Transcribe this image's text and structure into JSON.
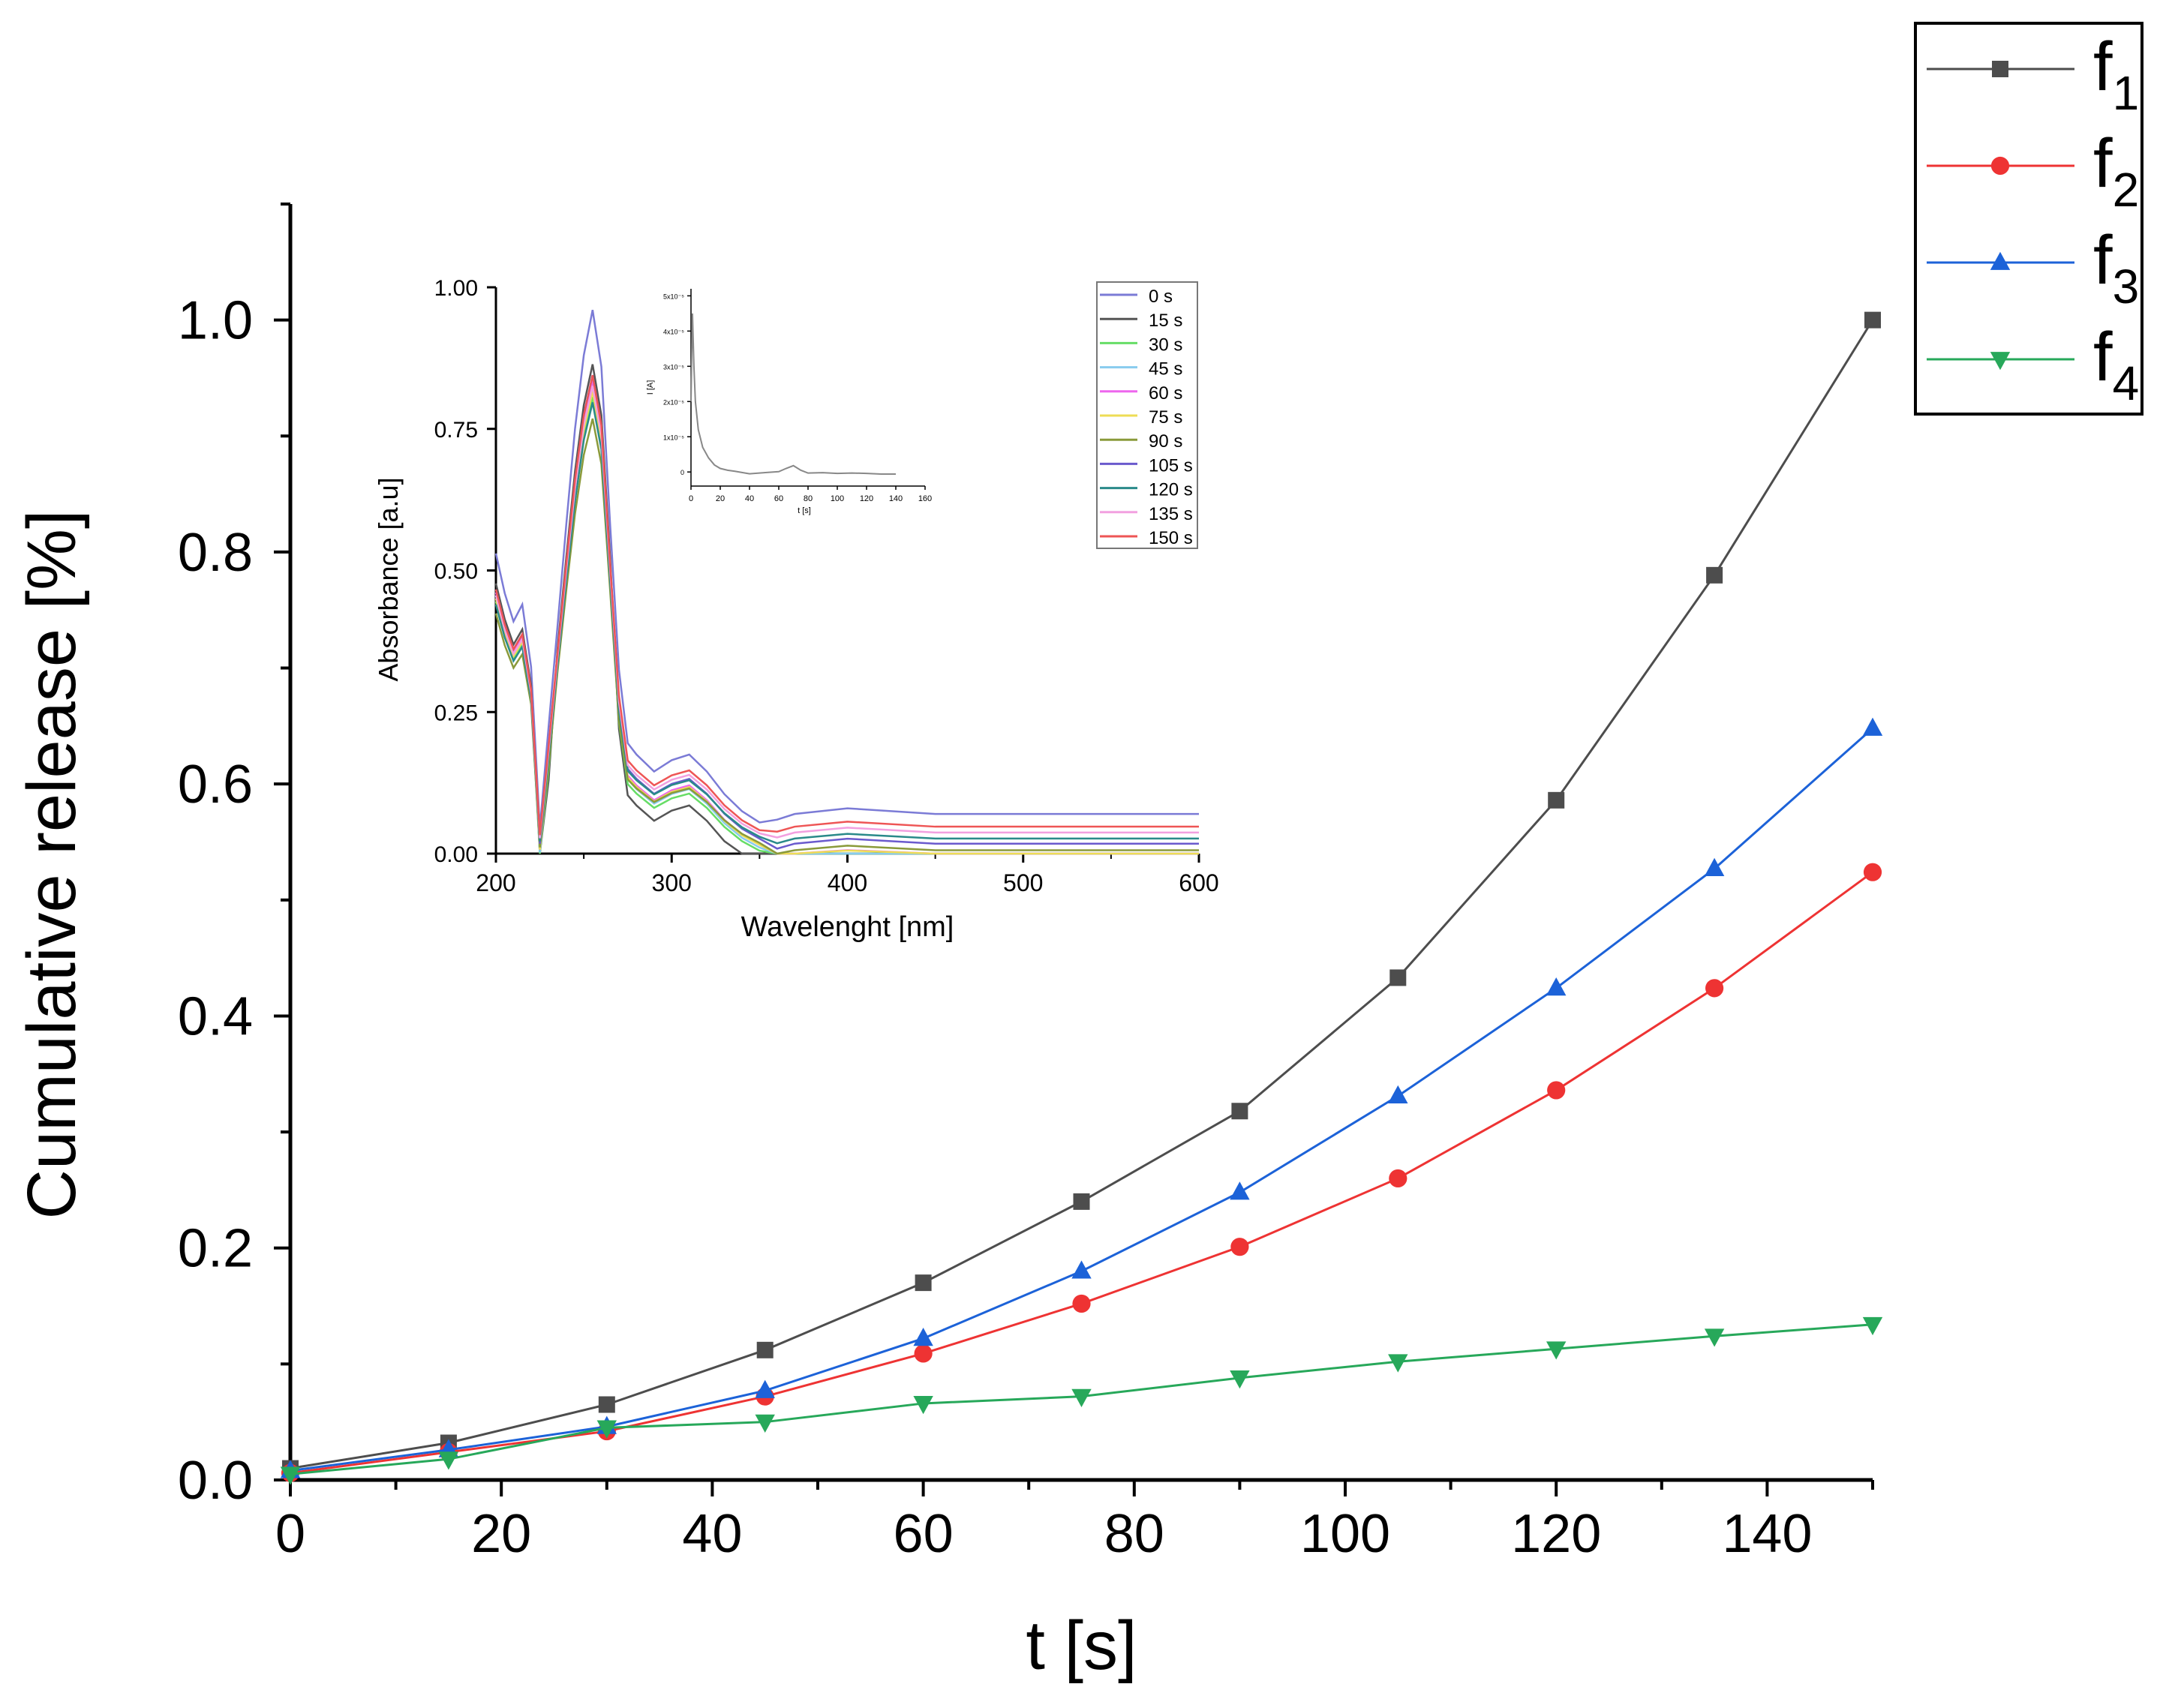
{
  "chart_data": [
    {
      "type": "line",
      "role": "main",
      "xlabel": "t [s]",
      "ylabel": "Cumulative release [%]",
      "xlim": [
        0,
        150
      ],
      "ylim": [
        0,
        1.1
      ],
      "xticks": [
        0,
        20,
        40,
        60,
        80,
        100,
        120,
        140
      ],
      "yticks": [
        0.0,
        0.2,
        0.4,
        0.6,
        0.8,
        1.0
      ],
      "xtick_labels": [
        "0",
        "20",
        "40",
        "60",
        "80",
        "100",
        "120",
        "140"
      ],
      "ytick_labels": [
        "0.0",
        "0.2",
        "0.4",
        "0.6",
        "0.8",
        "1.0"
      ],
      "x": [
        0,
        15,
        30,
        45,
        60,
        75,
        90,
        105,
        120,
        135,
        150
      ],
      "legend_position": "top-right (outside plot)",
      "series": [
        {
          "name": "f",
          "sub": "1",
          "color": "#4d4d4d",
          "marker": "square",
          "values": [
            0.01,
            0.032,
            0.065,
            0.112,
            0.17,
            0.24,
            0.318,
            0.433,
            0.586,
            0.78,
            1.0
          ]
        },
        {
          "name": "f",
          "sub": "2",
          "color": "#ee3333",
          "marker": "circle",
          "values": [
            0.006,
            0.024,
            0.042,
            0.072,
            0.109,
            0.152,
            0.201,
            0.26,
            0.336,
            0.424,
            0.524
          ]
        },
        {
          "name": "f",
          "sub": "3",
          "color": "#1c62d8",
          "marker": "triangle-up",
          "values": [
            0.008,
            0.026,
            0.046,
            0.077,
            0.122,
            0.18,
            0.248,
            0.331,
            0.424,
            0.527,
            0.648
          ]
        },
        {
          "name": "f",
          "sub": "4",
          "color": "#27a85a",
          "marker": "triangle-down",
          "values": [
            0.005,
            0.018,
            0.045,
            0.05,
            0.066,
            0.072,
            0.088,
            0.102,
            0.113,
            0.124,
            0.134
          ]
        }
      ]
    },
    {
      "type": "line",
      "role": "inset",
      "xlabel": "Wavelenght [nm]",
      "ylabel": "Absorbance [a.u]",
      "xlim": [
        200,
        600
      ],
      "ylim": [
        0,
        1.0
      ],
      "xtick_labels": [
        "200",
        "300",
        "400",
        "500",
        "600"
      ],
      "xticks": [
        200,
        300,
        400,
        500,
        600
      ],
      "ytick_labels": [
        "0.00",
        "0.25",
        "0.50",
        "0.75",
        "1.00"
      ],
      "yticks": [
        0,
        0.25,
        0.5,
        0.75,
        1.0
      ],
      "legend_position": "top-right",
      "wavelengths": [
        200,
        205,
        210,
        215,
        220,
        225,
        230,
        235,
        240,
        245,
        250,
        255,
        260,
        265,
        270,
        275,
        280,
        290,
        300,
        310,
        320,
        330,
        340,
        350,
        360,
        370,
        400,
        450,
        500,
        550,
        600
      ],
      "base_shape": [
        0.53,
        0.46,
        0.41,
        0.44,
        0.33,
        0.02,
        0.2,
        0.4,
        0.58,
        0.75,
        0.88,
        0.96,
        0.86,
        0.58,
        0.3,
        0.17,
        0.15,
        0.12,
        0.14,
        0.15,
        0.12,
        0.08,
        0.05,
        0.03,
        0.01,
        0.02,
        0.03,
        0.02,
        0.02,
        0.02,
        0.02
      ],
      "base_offset": [
        0.0,
        0.0,
        0.0,
        0.0,
        0.0,
        0.0,
        0.0,
        0.0,
        0.0,
        0.0,
        0.0,
        0.0,
        0.0,
        0.0,
        0.0,
        0.0,
        0.0,
        0.0,
        0.0,
        0.0,
        0.0,
        0.0,
        0.0,
        0.0,
        0.0,
        0.0,
        0.0,
        0.0,
        0.0,
        0.0,
        0.0
      ],
      "series": [
        {
          "name": "0 s",
          "color": "#7b7bd6",
          "scale": 1.0,
          "offset": 0.05
        },
        {
          "name": "15 s",
          "color": "#555555",
          "scale": 0.9,
          "offset": -0.1
        },
        {
          "name": "30 s",
          "color": "#66dd66",
          "scale": 0.84,
          "offset": -0.04
        },
        {
          "name": "45 s",
          "color": "#88ccee",
          "scale": 0.86,
          "offset": -0.03
        },
        {
          "name": "60 s",
          "color": "#ee66ee",
          "scale": 0.87,
          "offset": -0.02
        },
        {
          "name": "75 s",
          "color": "#eedd55",
          "scale": 0.85,
          "offset": -0.02
        },
        {
          "name": "90 s",
          "color": "#8a9a3a",
          "scale": 0.8,
          "offset": -0.01
        },
        {
          "name": "105 s",
          "color": "#6a5acd",
          "scale": 0.88,
          "offset": 0.0
        },
        {
          "name": "120 s",
          "color": "#2a8a8a",
          "scale": 0.83,
          "offset": 0.01
        },
        {
          "name": "135 s",
          "color": "#f2a0e0",
          "scale": 0.86,
          "offset": 0.02
        },
        {
          "name": "150 s",
          "color": "#ee5555",
          "scale": 0.88,
          "offset": 0.03
        }
      ]
    },
    {
      "type": "line",
      "role": "small-inset",
      "xlabel": "t [s]",
      "ylabel": "I [A]",
      "xlim": [
        0,
        160
      ],
      "ylim": [
        -4e-06,
        5.2e-05
      ],
      "xtick_labels": [
        "0",
        "20",
        "40",
        "60",
        "80",
        "100",
        "120",
        "140",
        "160"
      ],
      "xticks": [
        0,
        20,
        40,
        60,
        80,
        100,
        120,
        140,
        160
      ],
      "ytick_labels": [
        "0",
        "1x10⁻⁵",
        "2x10⁻⁵",
        "3x10⁻⁵",
        "4x10⁻⁵",
        "5x10⁻⁵"
      ],
      "yticks": [
        0,
        1e-05,
        2e-05,
        3e-05,
        4e-05,
        5e-05
      ],
      "color": "#888888",
      "x": [
        0,
        1,
        2,
        3,
        5,
        8,
        12,
        16,
        20,
        25,
        30,
        40,
        50,
        60,
        65,
        70,
        75,
        80,
        90,
        100,
        110,
        120,
        130,
        140
      ],
      "y": [
        2e-05,
        4.5e-05,
        3e-05,
        2e-05,
        1.2e-05,
        7e-06,
        4e-06,
        2e-06,
        1e-06,
        5e-07,
        2e-07,
        -5e-07,
        -2e-07,
        1e-07,
        1e-06,
        1.8e-06,
        5e-07,
        -3e-07,
        -2e-07,
        -4e-07,
        -3e-07,
        -4e-07,
        -6e-07,
        -6e-07
      ]
    }
  ]
}
